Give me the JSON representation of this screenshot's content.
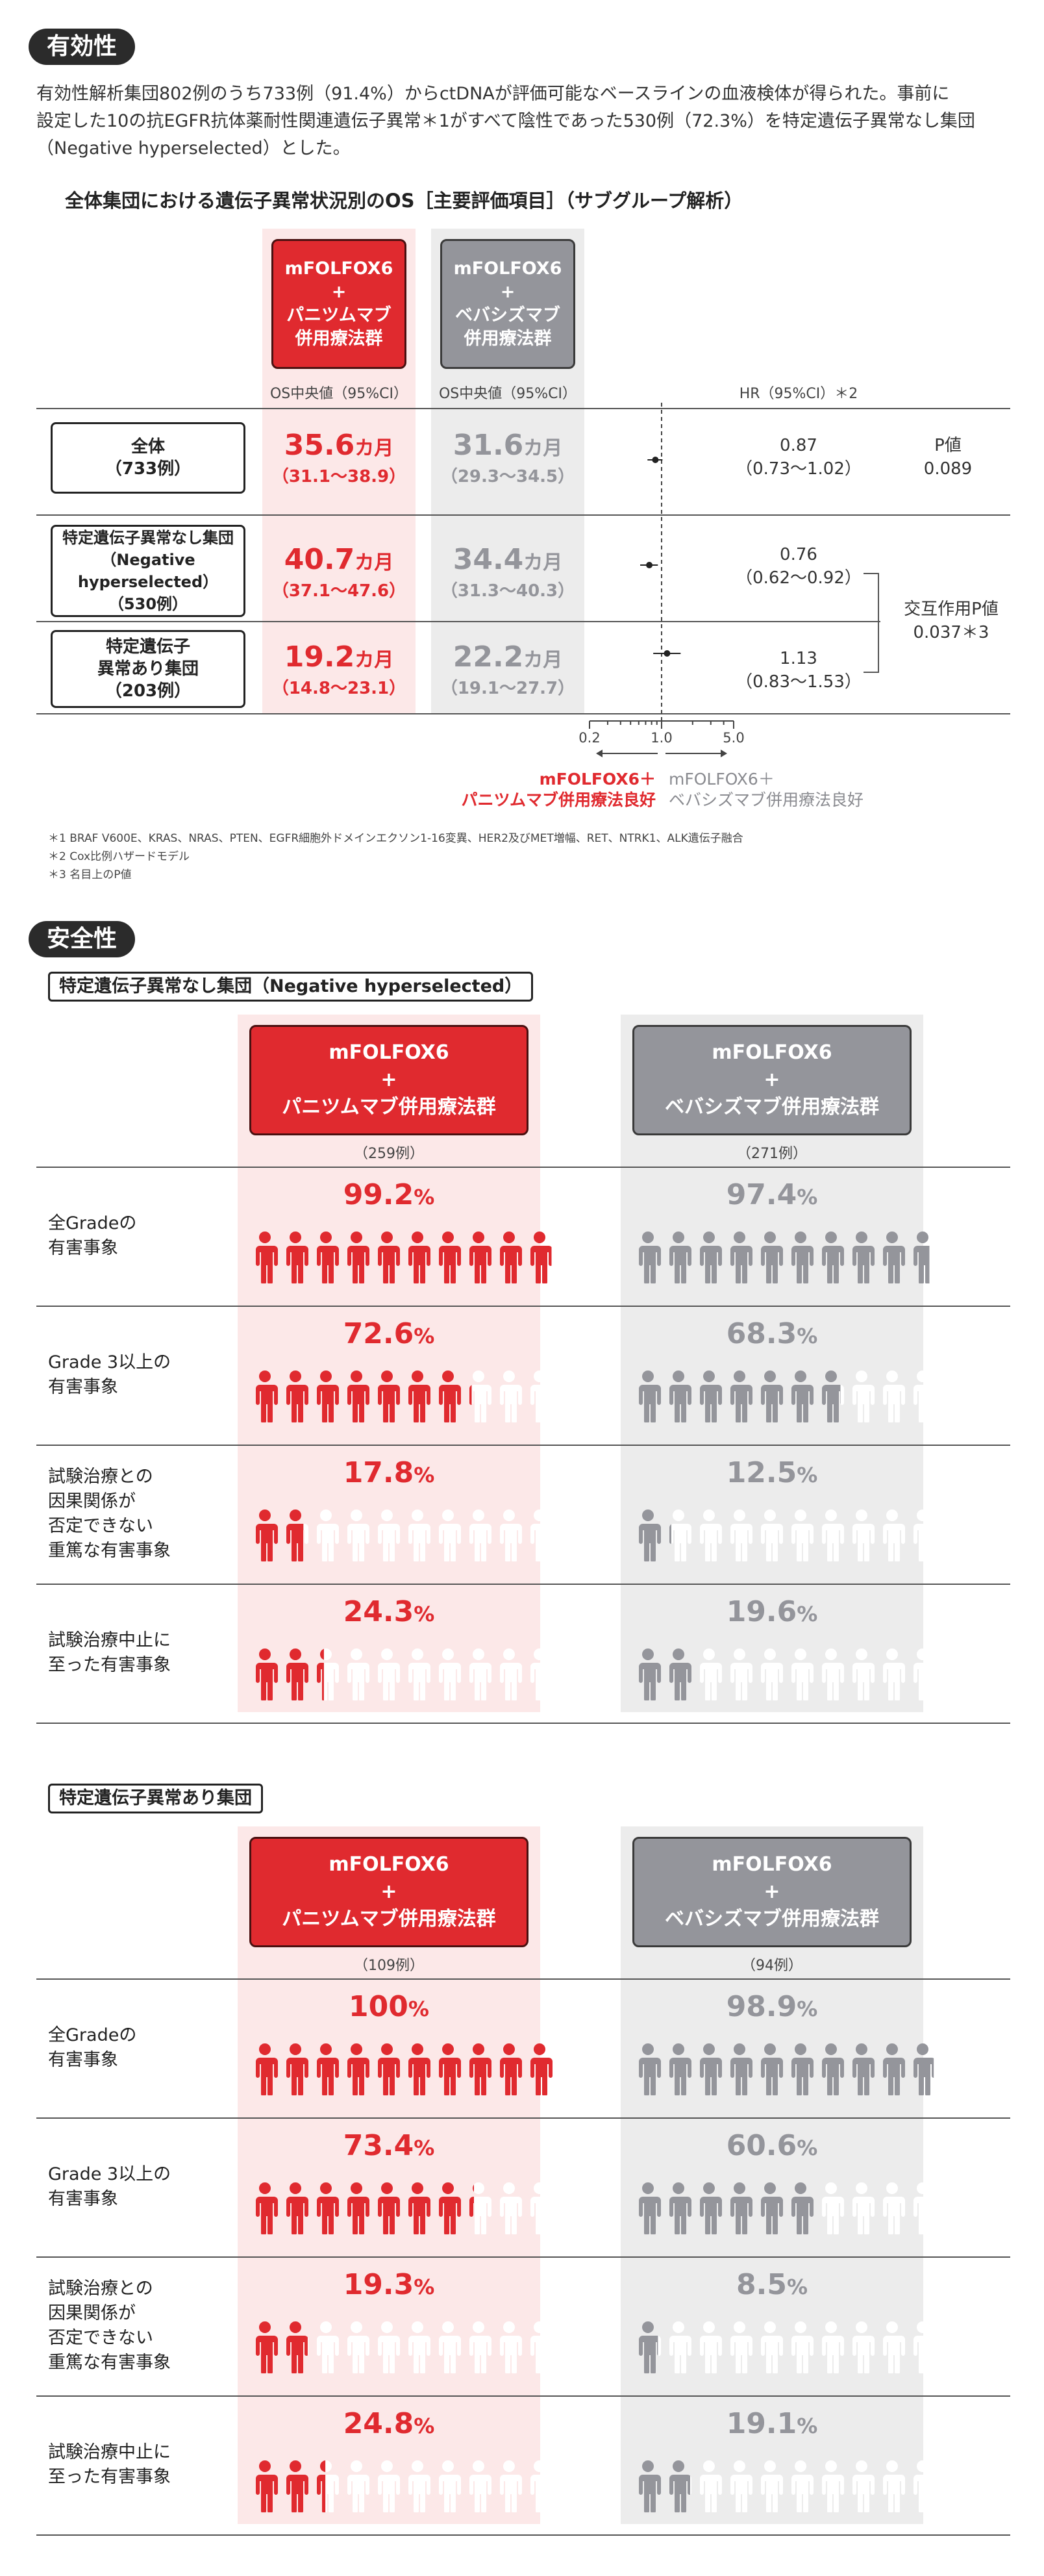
{
  "efficacy": {
    "badge": "有効性",
    "para_line1": "有効性解析集団802例のうち733例（91.4%）からctDNAが評価可能なベースラインの血液検体が得られた。事前に",
    "para_line2": "設定した10の抗EGFR抗体薬耐性関連遺伝子異常＊1がすべて陰性であった530例（72.3%）を特定遺伝子異常なし集団",
    "para_line3": "（Negative hyperselected）とした。",
    "title": "全体集団における遺伝子異常状況別のOS［主要評価項目］（サブグループ解析）",
    "arm_red": [
      "mFOLFOX6",
      "+",
      "パニツムマブ",
      "併用療法群"
    ],
    "arm_gray": [
      "mFOLFOX6",
      "+",
      "ベバシズマブ",
      "併用療法群"
    ],
    "os_label_red": "OS中央値（95%CI）",
    "os_label_gray": "OS中央値（95%CI）",
    "hr_header": "HR（95%CI）＊2",
    "rows": [
      {
        "label1": "全体",
        "label2": "（733例）",
        "label3": "",
        "red_val": "35.6",
        "red_ci": "（31.1〜38.9）",
        "gray_val": "31.6",
        "gray_ci": "（29.3〜34.5）",
        "hr": "0.87",
        "hr_ci": "（0.73〜1.02）",
        "hr_num": 0.87,
        "lo": 0.73,
        "hi": 1.02
      },
      {
        "label1": "特定遺伝子異常なし集団",
        "label2": "（Negative hyperselected）",
        "label3": "（530例）",
        "red_val": "40.7",
        "red_ci": "（37.1〜47.6）",
        "gray_val": "34.4",
        "gray_ci": "（31.3〜40.3）",
        "hr": "0.76",
        "hr_ci": "（0.62〜0.92）",
        "hr_num": 0.76,
        "lo": 0.62,
        "hi": 0.92
      },
      {
        "label1": "特定遺伝子",
        "label2": "異常あり集団",
        "label3": "（203例）",
        "red_val": "19.2",
        "red_ci": "（14.8〜23.1）",
        "gray_val": "22.2",
        "gray_ci": "（19.1〜27.7）",
        "hr": "1.13",
        "hr_ci": "（0.83〜1.53）",
        "hr_num": 1.13,
        "lo": 0.83,
        "hi": 1.53
      }
    ],
    "month_unit": "カ月",
    "pvalue_label": "P値",
    "pvalue": "0.089",
    "interaction_label": "交互作用P値",
    "interaction_value": "0.037＊3",
    "axis_ticks": [
      "0.2",
      "1.0",
      "5.0"
    ],
    "favor_red_1": "mFOLFOX6＋",
    "favor_red_2": "パニツムマブ併用療法良好",
    "favor_gray_1": "mFOLFOX6＋",
    "favor_gray_2": "ベバシズマブ併用療法良好",
    "footnote1": "＊1 BRAF V600E、KRAS、NRAS、PTEN、EGFR細胞外ドメインエクソン1-16変異、HER2及びMET増幅、RET、NTRK1、ALK遺伝子融合",
    "footnote2": "＊2 Cox比例ハザードモデル",
    "footnote3": "＊3 名目上のP値"
  },
  "safety": {
    "badge": "安全性",
    "groups": [
      {
        "title": "特定遺伝子異常なし集団（Negative hyperselected）",
        "n_red": "（259例）",
        "n_gray": "（271例）",
        "rows": [
          {
            "label": [
              "全Gradeの",
              "有害事象"
            ],
            "red_num": "99.2",
            "red_pct": 99.2,
            "gray_num": "97.4",
            "gray_pct": 97.4
          },
          {
            "label": [
              "Grade 3以上の",
              "有害事象"
            ],
            "red_num": "72.6",
            "red_pct": 72.6,
            "gray_num": "68.3",
            "gray_pct": 68.3
          },
          {
            "label": [
              "試験治療との",
              "因果関係が",
              "否定できない",
              "重篤な有害事象"
            ],
            "red_num": "17.8",
            "red_pct": 17.8,
            "gray_num": "12.5",
            "gray_pct": 12.5
          },
          {
            "label": [
              "試験治療中止に",
              "至った有害事象"
            ],
            "red_num": "24.3",
            "red_pct": 24.3,
            "gray_num": "19.6",
            "gray_pct": 19.6
          }
        ]
      },
      {
        "title": "特定遺伝子異常あり集団",
        "n_red": "（109例）",
        "n_gray": "（94例）",
        "rows": [
          {
            "label": [
              "全Gradeの",
              "有害事象"
            ],
            "red_num": "100",
            "red_pct": 100,
            "gray_num": "98.9",
            "gray_pct": 98.9
          },
          {
            "label": [
              "Grade 3以上の",
              "有害事象"
            ],
            "red_num": "73.4",
            "red_pct": 73.4,
            "gray_num": "60.6",
            "gray_pct": 60.6
          },
          {
            "label": [
              "試験治療との",
              "因果関係が",
              "否定できない",
              "重篤な有害事象"
            ],
            "red_num": "19.3",
            "red_pct": 19.3,
            "gray_num": "8.5",
            "gray_pct": 8.5
          },
          {
            "label": [
              "試験治療中止に",
              "至った有害事象"
            ],
            "red_num": "24.8",
            "red_pct": 24.8,
            "gray_num": "19.1",
            "gray_pct": 19.1
          }
        ]
      }
    ],
    "arm_red": [
      "mFOLFOX6",
      "+",
      "パニツムマブ併用療法群"
    ],
    "arm_gray": [
      "mFOLFOX6",
      "+",
      "ベバシズマブ併用療法群"
    ],
    "pct_sign": "%"
  },
  "colors": {
    "red": "#e02a2f",
    "gray": "#94959b",
    "red_bg": "#fce8e8",
    "gray_bg": "#ececec"
  }
}
